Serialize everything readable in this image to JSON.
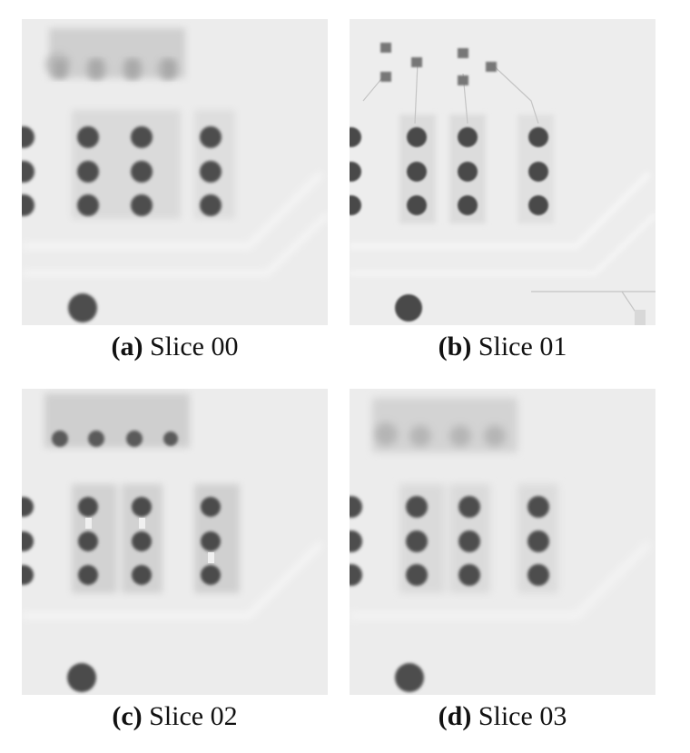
{
  "panels": [
    {
      "tag": "(a)",
      "label": "Slice 00",
      "variant": "a"
    },
    {
      "tag": "(b)",
      "label": "Slice 01",
      "variant": "b"
    },
    {
      "tag": "(c)",
      "label": "Slice 02",
      "variant": "c"
    },
    {
      "tag": "(d)",
      "label": "Slice 03",
      "variant": "d"
    }
  ],
  "colors": {
    "background": "#e9e9e9",
    "pad": "#4a4a4a",
    "trace": "#d6d6d6"
  }
}
